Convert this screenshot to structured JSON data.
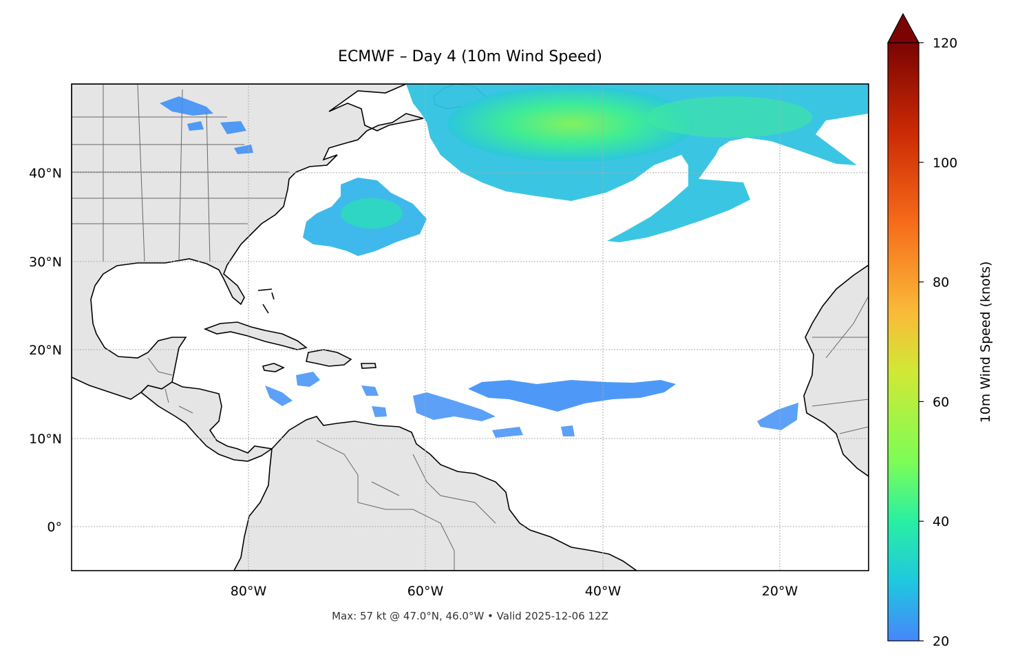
{
  "title": "ECMWF – Day 4 (10m Wind Speed)",
  "footer": "Max: 57 kt @ 47.0°N, 46.0°W • Valid 2025-12-06 12Z",
  "map": {
    "extent": {
      "lon": [
        -100,
        -10
      ],
      "lat": [
        -5,
        50
      ]
    },
    "lat_ticks": [
      {
        "value": 40,
        "label": "40°N"
      },
      {
        "value": 30,
        "label": "30°N"
      },
      {
        "value": 20,
        "label": "20°N"
      },
      {
        "value": 10,
        "label": "10°N"
      },
      {
        "value": 0,
        "label": "0°"
      }
    ],
    "lon_ticks": [
      {
        "value": -80,
        "label": "80°W"
      },
      {
        "value": -60,
        "label": "60°W"
      },
      {
        "value": -40,
        "label": "40°W"
      },
      {
        "value": -20,
        "label": "20°W"
      }
    ],
    "gridlines": true,
    "land_color": "#e5e5e5",
    "ocean_color": "#ffffff"
  },
  "colorbar": {
    "label": "10m Wind Speed (knots)",
    "min": 20,
    "max": 120,
    "ticks": [
      {
        "value": 20,
        "label": "20"
      },
      {
        "value": 40,
        "label": "40"
      },
      {
        "value": 60,
        "label": "60"
      },
      {
        "value": 80,
        "label": "80"
      },
      {
        "value": 100,
        "label": "100"
      },
      {
        "value": 120,
        "label": "120"
      }
    ],
    "colormap": "turbo",
    "extend": "max"
  },
  "max_point": {
    "speed_kt": 57,
    "lat": 47.0,
    "lon": -46.0,
    "valid": "2025-12-06 12Z"
  }
}
